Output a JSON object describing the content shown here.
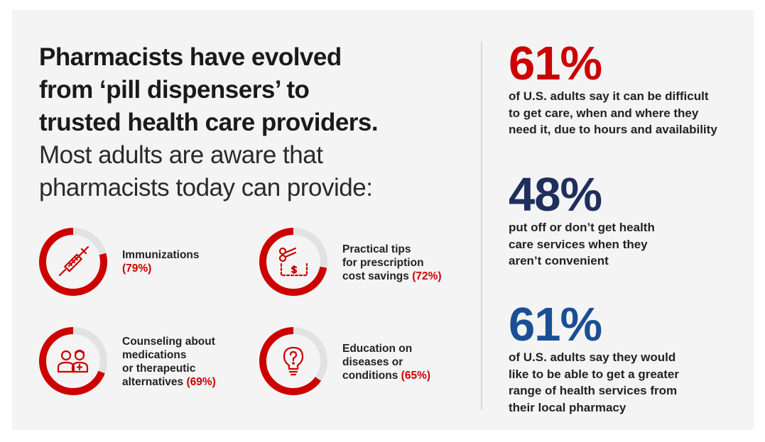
{
  "headline": {
    "bold": "Pharmacists have evolved\nfrom ‘pill dispensers’ to\ntrusted health care providers.",
    "light": "Most adults are aware that\npharmacists today can provide:"
  },
  "services": [
    {
      "label": "Immunizations",
      "pct_text": "(79%)",
      "value": 79,
      "icon": "syringe-icon"
    },
    {
      "label": "Practical tips\nfor prescription\ncost savings",
      "pct_text": "(72%)",
      "value": 72,
      "icon": "coupon-scissors-icon"
    },
    {
      "label": "Counseling about\nmedications\nor therapeutic\nalternatives",
      "pct_text": "(69%)",
      "value": 69,
      "icon": "people-icon"
    },
    {
      "label": "Education on\ndiseases or\nconditions",
      "pct_text": "(65%)",
      "value": 65,
      "icon": "lightbulb-question-icon"
    }
  ],
  "stats": [
    {
      "value": "61%",
      "color": "#cc0000",
      "desc": "of U.S. adults say it can be difficult\nto get care, when and where they\nneed it, due to hours and availability"
    },
    {
      "value": "48%",
      "color": "#1f2f5c",
      "desc": "put off or don’t get health\ncare services when they\naren’t convenient"
    },
    {
      "value": "61%",
      "color": "#1a4f96",
      "desc": "of U.S. adults say they would\nlike to be able to get a greater\nrange of health services from\ntheir local pharmacy"
    }
  ],
  "colors": {
    "accent_red": "#cc0000",
    "ring_track": "#e2e2e2",
    "background": "#f4f4f4"
  }
}
